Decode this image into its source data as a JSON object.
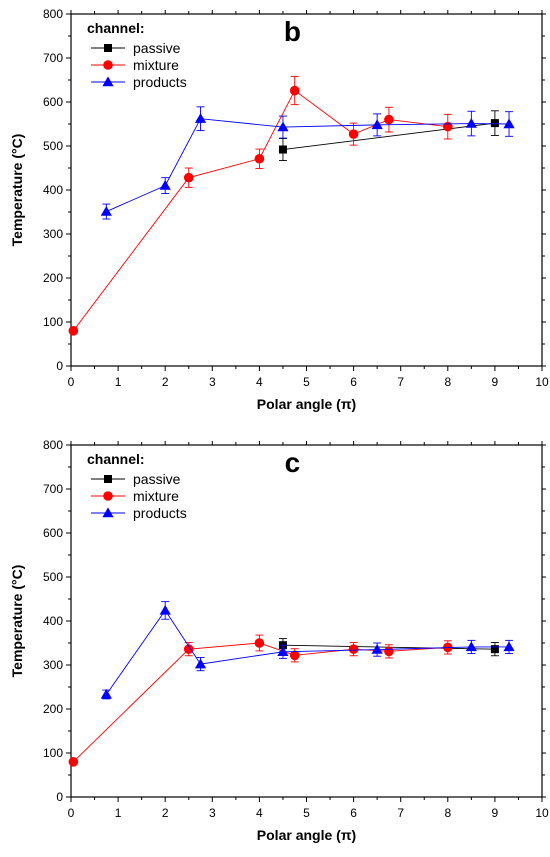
{
  "chart_data": [
    {
      "type": "line",
      "panel_label": "b",
      "xlabel": "Polar angle (π)",
      "ylabel": "Temperature (°C)",
      "xlim": [
        0,
        10
      ],
      "ylim": [
        0,
        800
      ],
      "xticks": [
        "0",
        "1",
        "2",
        "3",
        "4",
        "5",
        "6",
        "7",
        "8",
        "9",
        "10"
      ],
      "yticks": [
        "0",
        "100",
        "200",
        "300",
        "400",
        "500",
        "600",
        "700",
        "800"
      ],
      "legend_title": "channel:",
      "legend_position": "top-left",
      "series": [
        {
          "name": "passive",
          "color": "#000000",
          "marker": "square",
          "x": [
            4.5,
            9.0
          ],
          "y": [
            492,
            552
          ],
          "err": [
            25,
            28
          ]
        },
        {
          "name": "mixture",
          "color": "#ff0000",
          "marker": "circle",
          "x": [
            0.05,
            2.5,
            4.0,
            4.75,
            6.0,
            6.75,
            8.0
          ],
          "y": [
            80,
            428,
            471,
            626,
            527,
            560,
            544
          ],
          "err": [
            0,
            22,
            22,
            32,
            25,
            28,
            28
          ]
        },
        {
          "name": "products",
          "color": "#0000ff",
          "marker": "triangle",
          "x": [
            0.75,
            2.0,
            2.75,
            4.5,
            6.5,
            8.5,
            9.3
          ],
          "y": [
            351,
            410,
            562,
            543,
            548,
            551,
            550
          ],
          "err": [
            17,
            18,
            27,
            25,
            25,
            28,
            28
          ]
        }
      ]
    },
    {
      "type": "line",
      "panel_label": "c",
      "xlabel": "Polar angle (π)",
      "ylabel": "Temperature (°C)",
      "xlim": [
        0,
        10
      ],
      "ylim": [
        0,
        800
      ],
      "xticks": [
        "0",
        "1",
        "2",
        "3",
        "4",
        "5",
        "6",
        "7",
        "8",
        "9",
        "10"
      ],
      "yticks": [
        "0",
        "100",
        "200",
        "300",
        "400",
        "500",
        "600",
        "700",
        "800"
      ],
      "legend_title": "channel:",
      "legend_position": "top-left",
      "series": [
        {
          "name": "passive",
          "color": "#000000",
          "marker": "square",
          "x": [
            4.5,
            9.0
          ],
          "y": [
            345,
            336
          ],
          "err": [
            15,
            15
          ]
        },
        {
          "name": "mixture",
          "color": "#ff0000",
          "marker": "circle",
          "x": [
            0.05,
            2.5,
            4.0,
            4.75,
            6.0,
            6.75,
            8.0
          ],
          "y": [
            80,
            336,
            350,
            322,
            336,
            331,
            340
          ],
          "err": [
            0,
            15,
            18,
            15,
            15,
            15,
            15
          ]
        },
        {
          "name": "products",
          "color": "#0000ff",
          "marker": "triangle",
          "x": [
            0.75,
            2.0,
            2.75,
            4.5,
            6.5,
            8.5,
            9.3
          ],
          "y": [
            233,
            424,
            302,
            330,
            335,
            341,
            341
          ],
          "err": [
            10,
            20,
            15,
            15,
            15,
            15,
            15
          ]
        }
      ]
    }
  ]
}
